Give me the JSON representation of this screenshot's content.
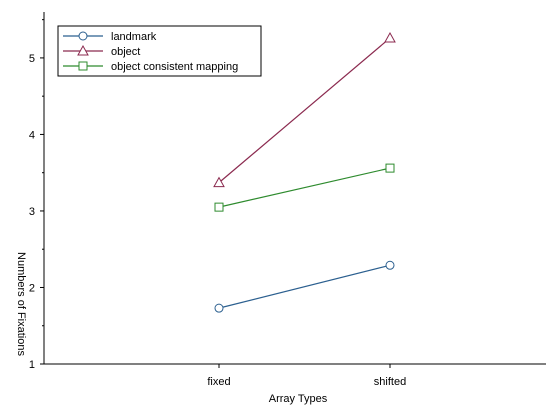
{
  "chart_data": {
    "type": "line",
    "title": "",
    "xlabel": "Array Types",
    "ylabel": "Numbers of Fixations",
    "categories": [
      "fixed",
      "shifted"
    ],
    "ylim": [
      1,
      5.6
    ],
    "yticks": [
      1,
      2,
      3,
      4,
      5
    ],
    "grid": false,
    "legend_position": "top-left",
    "series": [
      {
        "name": "landmark",
        "values": [
          1.73,
          2.29
        ],
        "color": "#2b5f8f",
        "marker": "circle"
      },
      {
        "name": "object",
        "values": [
          3.37,
          5.26
        ],
        "color": "#8b2a4f",
        "marker": "triangle"
      },
      {
        "name": "object consistent mapping",
        "values": [
          3.05,
          3.56
        ],
        "color": "#2e8b2e",
        "marker": "square"
      }
    ]
  }
}
